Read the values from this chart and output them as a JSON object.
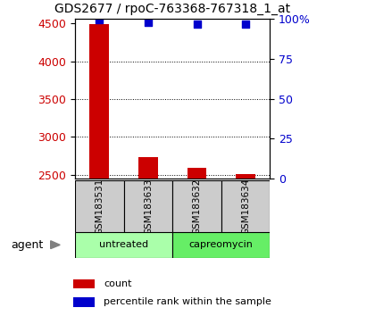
{
  "title": "GDS2677 / rpoC-763368-767318_1_at",
  "samples": [
    "GSM183531",
    "GSM183633",
    "GSM183632",
    "GSM183634"
  ],
  "groups": [
    {
      "name": "untreated",
      "color": "#aaffaa"
    },
    {
      "name": "capreomycin",
      "color": "#66ee66"
    }
  ],
  "count_values": [
    4490,
    2730,
    2590,
    2510
  ],
  "percentile_values": [
    99.5,
    98.0,
    96.5,
    97.0
  ],
  "ylim_left": [
    2450,
    4560
  ],
  "ylim_right": [
    0,
    100
  ],
  "yticks_left": [
    2500,
    3000,
    3500,
    4000,
    4500
  ],
  "yticks_right": [
    0,
    25,
    50,
    75,
    100
  ],
  "bar_color": "#cc0000",
  "dot_color": "#0000cc",
  "bar_width": 0.4,
  "sample_box_color": "#cccccc",
  "left_label_color": "#cc0000",
  "right_label_color": "#0000cc",
  "legend_red_label": "count",
  "legend_blue_label": "percentile rank within the sample",
  "agent_label": "agent"
}
